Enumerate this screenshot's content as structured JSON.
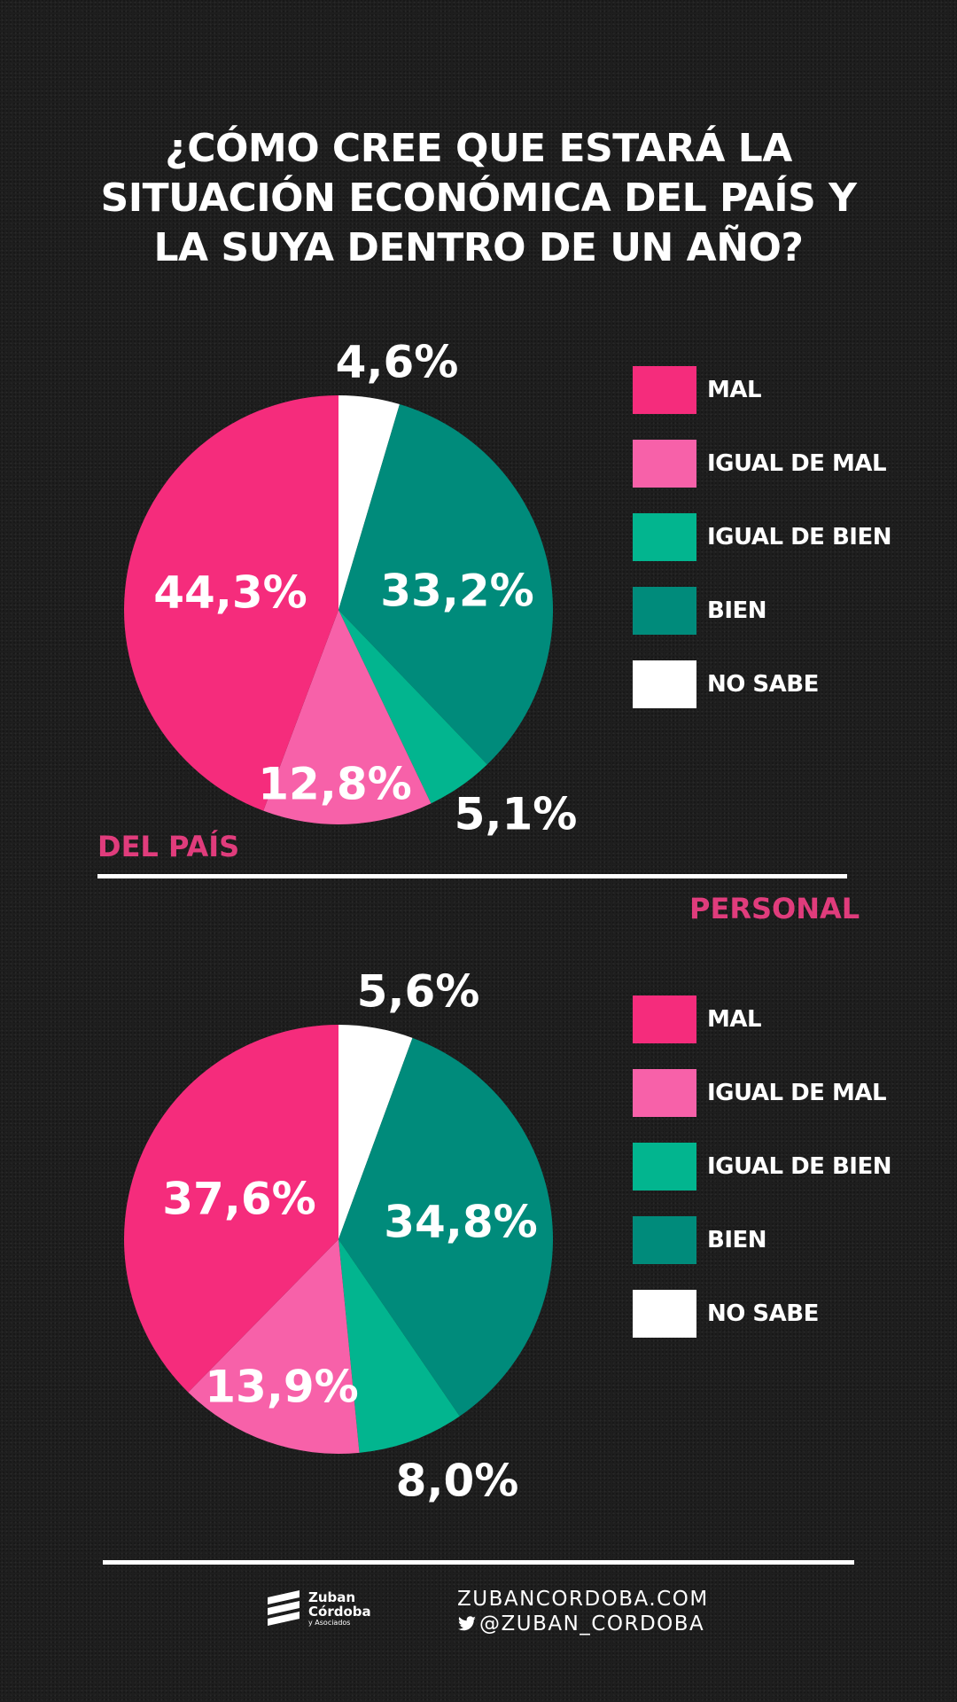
{
  "title": {
    "line1": "¿CÓMO CREE QUE ESTARÁ LA",
    "line2": "SITUACIÓN ECONÓMICA DEL PAÍS Y",
    "line3": "LA SUYA DENTRO DE UN AÑO?"
  },
  "sections": {
    "pais_label": "DEL PAÍS",
    "personal_label": "PERSONAL"
  },
  "colors": {
    "mal": "#f52c7c",
    "igual_de_mal": "#f761a9",
    "igual_de_bien": "#02b58f",
    "bien": "#008b7b",
    "no_sabe": "#ffffff",
    "section_label": "#e03c7c"
  },
  "legend": {
    "items": [
      "MAL",
      "IGUAL DE MAL",
      "IGUAL DE BIEN",
      "BIEN",
      "NO SABE"
    ]
  },
  "chart_data": [
    {
      "type": "pie",
      "title": "DEL PAÍS",
      "categories": [
        "NO SABE",
        "BIEN",
        "IGUAL DE BIEN",
        "IGUAL DE MAL",
        "MAL"
      ],
      "values": [
        4.6,
        33.2,
        5.1,
        12.8,
        44.3
      ],
      "labels": [
        "4,6%",
        "33,2%",
        "5,1%",
        "12,8%",
        "44,3%"
      ],
      "legend_position": "right"
    },
    {
      "type": "pie",
      "title": "PERSONAL",
      "categories": [
        "NO SABE",
        "BIEN",
        "IGUAL DE BIEN",
        "IGUAL DE MAL",
        "MAL"
      ],
      "values": [
        5.6,
        34.8,
        8.0,
        13.9,
        37.6
      ],
      "labels": [
        "5,6%",
        "34,8%",
        "8,0%",
        "13,9%",
        "37,6%"
      ],
      "legend_position": "right"
    }
  ],
  "footer": {
    "logo_line1": "Zuban",
    "logo_line2": "Córdoba",
    "logo_line3": "y Asociados",
    "website": "ZUBANCORDOBA.COM",
    "twitter": "@ZUBAN_CORDOBA",
    "twitter_icon": "twitter-bird-icon"
  }
}
